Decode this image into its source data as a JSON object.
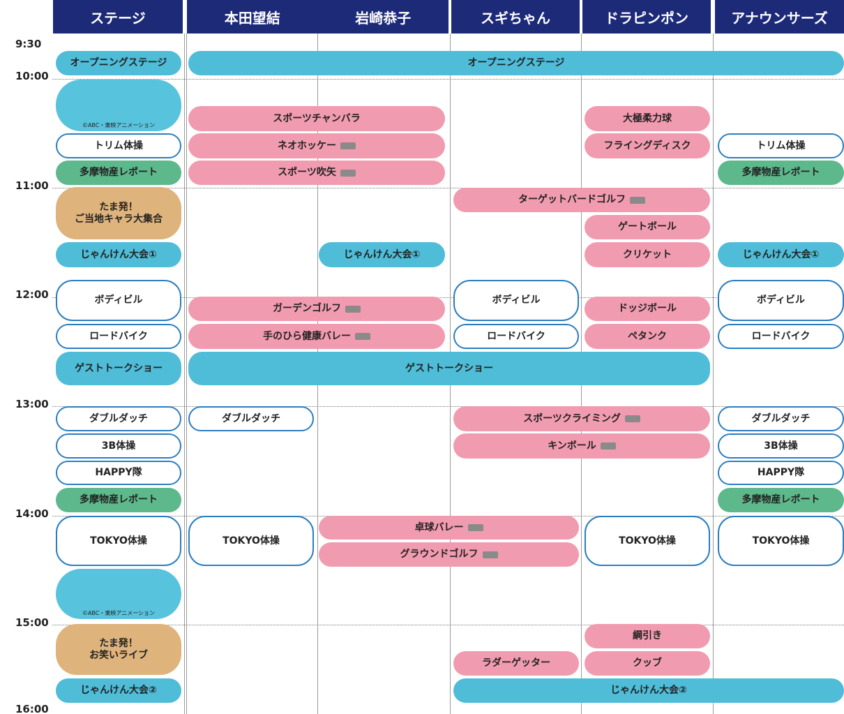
{
  "header": {
    "columns": [
      "ステージ",
      "本田望結",
      "岩崎恭子",
      "スギちゃん",
      "ドラピンポン",
      "アナウンサーズ"
    ]
  },
  "times": [
    "9:30",
    "10:00",
    "11:00",
    "12:00",
    "13:00",
    "14:00",
    "15:00",
    "16:00"
  ],
  "events": [
    {
      "label": "オープニングステージ"
    },
    {
      "label": "©ABC・東映アニメーション"
    },
    {
      "label": "トリム体操"
    },
    {
      "label": "多摩物産レポート"
    },
    {
      "label": "たま発！\nご当地キャラ大集合"
    },
    {
      "label": "じゃんけん大会①"
    },
    {
      "label": "ボディビル"
    },
    {
      "label": "ロードバイク"
    },
    {
      "label": "ゲストトークショー"
    },
    {
      "label": "ダブルダッチ"
    },
    {
      "label": "3B体操"
    },
    {
      "label": "HAPPY隊"
    },
    {
      "label": "多摩物産レポート"
    },
    {
      "label": "TOKYO体操"
    },
    {
      "label": "©ABC・東映アニメーション"
    },
    {
      "label": "たま発！\nお笑いライブ"
    },
    {
      "label": "じゃんけん大会②"
    },
    {
      "label": "オープニングステージ"
    },
    {
      "label": "スポーツチャンバラ"
    },
    {
      "label": "ネオホッケー"
    },
    {
      "label": "スポーツ吹矢"
    },
    {
      "label": "大極柔力球"
    },
    {
      "label": "フライングディスク"
    },
    {
      "label": "トリム体操"
    },
    {
      "label": "多摩物産レポート"
    },
    {
      "label": "ターゲットバードゴルフ"
    },
    {
      "label": "ゲートボール"
    },
    {
      "label": "じゃんけん大会①"
    },
    {
      "label": "クリケット"
    },
    {
      "label": "じゃんけん大会①"
    },
    {
      "label": "ガーデンゴルフ"
    },
    {
      "label": "ボディビル"
    },
    {
      "label": "ドッジボール"
    },
    {
      "label": "ボディビル"
    },
    {
      "label": "手のひら健康バレー"
    },
    {
      "label": "ロードバイク"
    },
    {
      "label": "ペタンク"
    },
    {
      "label": "ロードバイク"
    },
    {
      "label": "ゲストトークショー"
    },
    {
      "label": "ダブルダッチ"
    },
    {
      "label": "スポーツクライミング"
    },
    {
      "label": "ダブルダッチ"
    },
    {
      "label": "キンボール"
    },
    {
      "label": "3B体操"
    },
    {
      "label": "HAPPY隊"
    },
    {
      "label": "多摩物産レポート"
    },
    {
      "label": "TOKYO体操"
    },
    {
      "label": "卓球バレー"
    },
    {
      "label": "グラウンドゴルフ"
    },
    {
      "label": "TOKYO体操"
    },
    {
      "label": "TOKYO体操"
    },
    {
      "label": "綱引き"
    },
    {
      "label": "ラダーゲッター"
    },
    {
      "label": "クッブ"
    },
    {
      "label": "じゃんけん大会②"
    }
  ]
}
